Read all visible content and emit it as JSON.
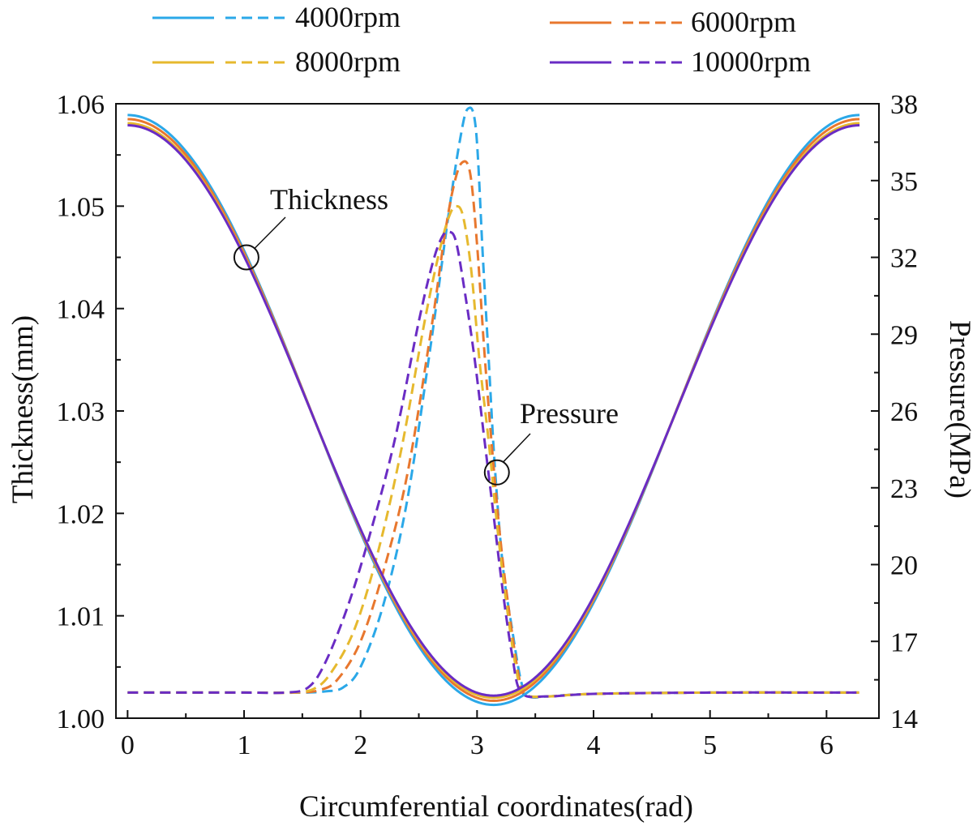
{
  "chart_data": {
    "type": "line",
    "title": "",
    "xlabel": "Circumferential coordinates(rad)",
    "ylabel_left": "Thickness(mm)",
    "ylabel_right": "Pressure(MPa)",
    "xlim": [
      -0.1,
      6.45
    ],
    "ylim_left": [
      1.0,
      1.06
    ],
    "ylim_right": [
      14,
      38
    ],
    "x_ticks": [
      "0",
      "1",
      "2",
      "3",
      "4",
      "5",
      "6"
    ],
    "y_left_ticks": [
      "1.00",
      "1.01",
      "1.02",
      "1.03",
      "1.04",
      "1.05",
      "1.06"
    ],
    "y_right_ticks": [
      "14",
      "17",
      "20",
      "23",
      "26",
      "29",
      "32",
      "35",
      "38"
    ],
    "legend_position": "top",
    "series": [
      {
        "name": "4000rpm",
        "color": "#2BA8E8",
        "thickness": {
          "max": 1.0589,
          "min": 1.0013
        },
        "pressure": {
          "x": [
            0,
            1.0,
            1.5,
            1.7,
            1.85,
            2.0,
            2.2,
            2.4,
            2.6,
            2.75,
            2.85,
            2.92,
            2.99,
            3.05,
            3.1,
            3.15,
            3.22,
            3.3,
            3.38,
            3.45,
            3.6,
            4.0,
            5.0,
            6.28
          ],
          "values": [
            15.0,
            15.0,
            15.0,
            15.05,
            15.2,
            16.0,
            18.5,
            22.5,
            28.5,
            33.5,
            36.5,
            37.8,
            37.0,
            32.0,
            28.0,
            24.0,
            20.0,
            17.5,
            15.4,
            14.85,
            14.85,
            14.95,
            15.0,
            15.0
          ]
        }
      },
      {
        "name": "6000rpm",
        "color": "#E8772E",
        "thickness": {
          "max": 1.0585,
          "min": 1.0017
        },
        "pressure": {
          "x": [
            0,
            1.0,
            1.45,
            1.65,
            1.8,
            2.0,
            2.2,
            2.4,
            2.6,
            2.72,
            2.8,
            2.87,
            2.94,
            3.0,
            3.06,
            3.12,
            3.2,
            3.28,
            3.36,
            3.42,
            3.6,
            4.0,
            5.0,
            6.28
          ],
          "values": [
            15.0,
            15.0,
            15.0,
            15.1,
            15.5,
            17.0,
            19.8,
            23.5,
            29.0,
            32.8,
            34.8,
            35.7,
            35.3,
            32.5,
            28.5,
            25.0,
            21.0,
            18.0,
            15.6,
            14.9,
            14.85,
            14.95,
            15.0,
            15.0
          ]
        }
      },
      {
        "name": "8000rpm",
        "color": "#E6B92E",
        "thickness": {
          "max": 1.0581,
          "min": 1.002
        },
        "pressure": {
          "x": [
            0,
            1.0,
            1.4,
            1.6,
            1.75,
            1.95,
            2.15,
            2.35,
            2.55,
            2.68,
            2.76,
            2.82,
            2.88,
            2.95,
            3.02,
            3.1,
            3.18,
            3.26,
            3.34,
            3.4,
            3.6,
            4.0,
            5.0,
            6.28
          ],
          "values": [
            15.0,
            15.0,
            15.0,
            15.15,
            15.8,
            17.5,
            20.5,
            24.5,
            29.5,
            32.3,
            33.6,
            34.0,
            33.6,
            31.5,
            28.0,
            24.8,
            21.2,
            18.2,
            15.8,
            14.95,
            14.85,
            14.95,
            15.0,
            15.0
          ]
        }
      },
      {
        "name": "10000rpm",
        "color": "#6A2CC4",
        "thickness": {
          "max": 1.0579,
          "min": 1.0022
        },
        "pressure": {
          "x": [
            0,
            1.0,
            1.35,
            1.55,
            1.7,
            1.9,
            2.1,
            2.3,
            2.5,
            2.62,
            2.7,
            2.76,
            2.82,
            2.9,
            2.98,
            3.06,
            3.14,
            3.22,
            3.3,
            3.38,
            3.6,
            4.0,
            5.0,
            6.28
          ],
          "values": [
            15.0,
            15.0,
            15.0,
            15.2,
            16.2,
            18.5,
            21.5,
            25.0,
            29.5,
            31.8,
            32.8,
            33.0,
            32.6,
            30.5,
            28.0,
            25.0,
            22.0,
            19.0,
            16.5,
            15.0,
            14.85,
            14.95,
            15.0,
            15.0
          ]
        }
      }
    ],
    "annotations": [
      {
        "text": "Thickness",
        "target_x": 1.02,
        "target_y_left": 1.045
      },
      {
        "text": "Pressure",
        "target_x": 3.17,
        "target_y_right": 23.6
      }
    ]
  }
}
